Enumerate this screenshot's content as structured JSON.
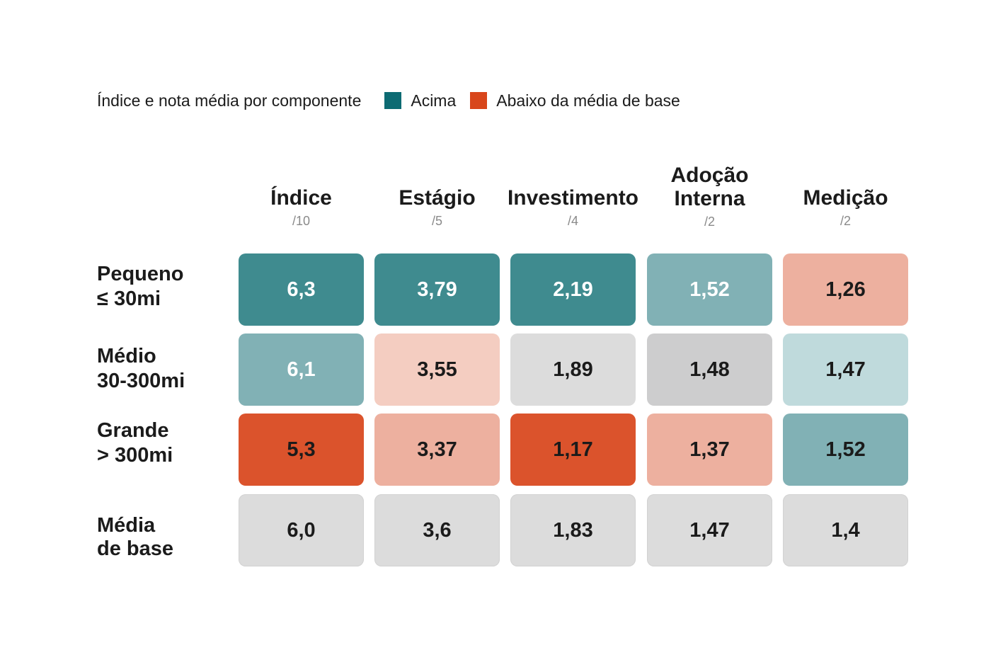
{
  "legend": {
    "title": "Índice e nota média por componente",
    "items": [
      {
        "label": "Acima",
        "color": "#0d6b73"
      },
      {
        "label": "Abaixo da média de base",
        "color": "#d8461b"
      }
    ]
  },
  "columns": [
    {
      "title_lines": [
        "Índice"
      ],
      "max": "/10"
    },
    {
      "title_lines": [
        "Estágio"
      ],
      "max": "/5"
    },
    {
      "title_lines": [
        "Investimento"
      ],
      "max": "/4"
    },
    {
      "title_lines": [
        "Adoção",
        "Interna"
      ],
      "max": "/2"
    },
    {
      "title_lines": [
        "Medição"
      ],
      "max": "/2"
    }
  ],
  "rows": [
    {
      "label_lines": [
        "Pequeno",
        "≤ 30mi"
      ],
      "cells": [
        {
          "value": "6,3",
          "fill": "#3f8b8f",
          "text_color": "#ffffff"
        },
        {
          "value": "3,79",
          "fill": "#3f8b8f",
          "text_color": "#ffffff"
        },
        {
          "value": "2,19",
          "fill": "#3f8b8f",
          "text_color": "#ffffff"
        },
        {
          "value": "1,52",
          "fill": "#81b1b5",
          "text_color": "#ffffff"
        },
        {
          "value": "1,26",
          "fill": "#edb09f",
          "text_color": "#1b1b1b"
        }
      ]
    },
    {
      "label_lines": [
        "Médio",
        "30-300mi"
      ],
      "cells": [
        {
          "value": "6,1",
          "fill": "#81b1b5",
          "text_color": "#ffffff"
        },
        {
          "value": "3,55",
          "fill": "#f4cdc1",
          "text_color": "#1b1b1b"
        },
        {
          "value": "1,89",
          "fill": "#dcdcdc",
          "text_color": "#1b1b1b"
        },
        {
          "value": "1,48",
          "fill": "#cdcdce",
          "text_color": "#1b1b1b"
        },
        {
          "value": "1,47",
          "fill": "#bfdadc",
          "text_color": "#1b1b1b"
        }
      ]
    },
    {
      "label_lines": [
        "Grande",
        "> 300mi"
      ],
      "cells": [
        {
          "value": "5,3",
          "fill": "#db532c",
          "text_color": "#1b1b1b"
        },
        {
          "value": "3,37",
          "fill": "#edb09f",
          "text_color": "#1b1b1b"
        },
        {
          "value": "1,17",
          "fill": "#db532c",
          "text_color": "#1b1b1b"
        },
        {
          "value": "1,37",
          "fill": "#edb09f",
          "text_color": "#1b1b1b"
        },
        {
          "value": "1,52",
          "fill": "#81b1b5",
          "text_color": "#1b1b1b"
        }
      ]
    },
    {
      "label_lines": [
        "Média",
        "de base"
      ],
      "cells": [
        {
          "value": "6,0",
          "fill": "#dcdcdc",
          "text_color": "#1b1b1b"
        },
        {
          "value": "3,6",
          "fill": "#dcdcdc",
          "text_color": "#1b1b1b"
        },
        {
          "value": "1,83",
          "fill": "#dcdcdc",
          "text_color": "#1b1b1b"
        },
        {
          "value": "1,47",
          "fill": "#dcdcdc",
          "text_color": "#1b1b1b"
        },
        {
          "value": "1,4",
          "fill": "#dcdcdc",
          "text_color": "#1b1b1b"
        }
      ]
    }
  ],
  "chart_data": {
    "type": "heatmap",
    "title": "Índice e nota média por componente",
    "x_categories": [
      "Índice /10",
      "Estágio /5",
      "Investimento /4",
      "Adoção Interna /2",
      "Medição /2"
    ],
    "y_categories": [
      "Pequeno ≤ 30mi",
      "Médio 30-300mi",
      "Grande > 300mi",
      "Média de base"
    ],
    "values": [
      [
        6.3,
        3.79,
        2.19,
        1.52,
        1.26
      ],
      [
        6.1,
        3.55,
        1.89,
        1.48,
        1.47
      ],
      [
        5.3,
        3.37,
        1.17,
        1.37,
        1.52
      ],
      [
        6.0,
        3.6,
        1.83,
        1.47,
        1.4
      ]
    ],
    "legend": [
      "Acima",
      "Abaixo da média de base"
    ],
    "legend_position": "top"
  }
}
